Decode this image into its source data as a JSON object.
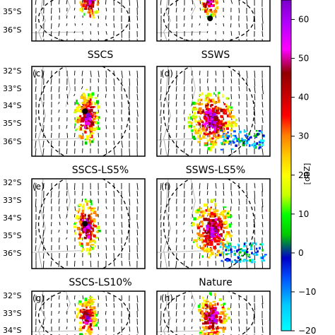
{
  "figure": {
    "colorbar": {
      "label": "[dBZ]",
      "ticks": [
        "60",
        "50",
        "40",
        "30",
        "20",
        "10",
        "0",
        "−10",
        "−20"
      ],
      "tick_values": [
        60,
        50,
        40,
        30,
        20,
        10,
        0,
        -10,
        -20
      ],
      "range": [
        -20,
        65
      ],
      "colors": [
        "#00ffff",
        "#00c8ff",
        "#0050ff",
        "#0000c8",
        "#00c800",
        "#00ff00",
        "#c8ff00",
        "#ffff00",
        "#ffc800",
        "#ff8000",
        "#ff0000",
        "#c80000",
        "#900000",
        "#ff00ff",
        "#b400ff",
        "#7a00c8"
      ]
    },
    "latitude_labels": {
      "top_row": [
        "35°S",
        "36°S"
      ],
      "rows": [
        "32°S",
        "33°S",
        "34°S",
        "35°S",
        "36°S"
      ],
      "bottom_row": [
        "32°S",
        "33°S",
        "34°S"
      ]
    },
    "panels": [
      {
        "id": "a",
        "title": ""
      },
      {
        "id": "b",
        "title": ""
      },
      {
        "id": "c",
        "label": "(c)",
        "title": "SSCS"
      },
      {
        "id": "d",
        "label": "(d)",
        "title": "SSWS"
      },
      {
        "id": "e",
        "label": "(e)",
        "title": "SSCS-LS5%"
      },
      {
        "id": "f",
        "label": "(f)",
        "title": "SSWS-LS5%"
      },
      {
        "id": "g",
        "label": "(g)",
        "title": "SSCS-LS10%"
      },
      {
        "id": "h",
        "label": "(h)",
        "title": "Nature"
      }
    ]
  }
}
